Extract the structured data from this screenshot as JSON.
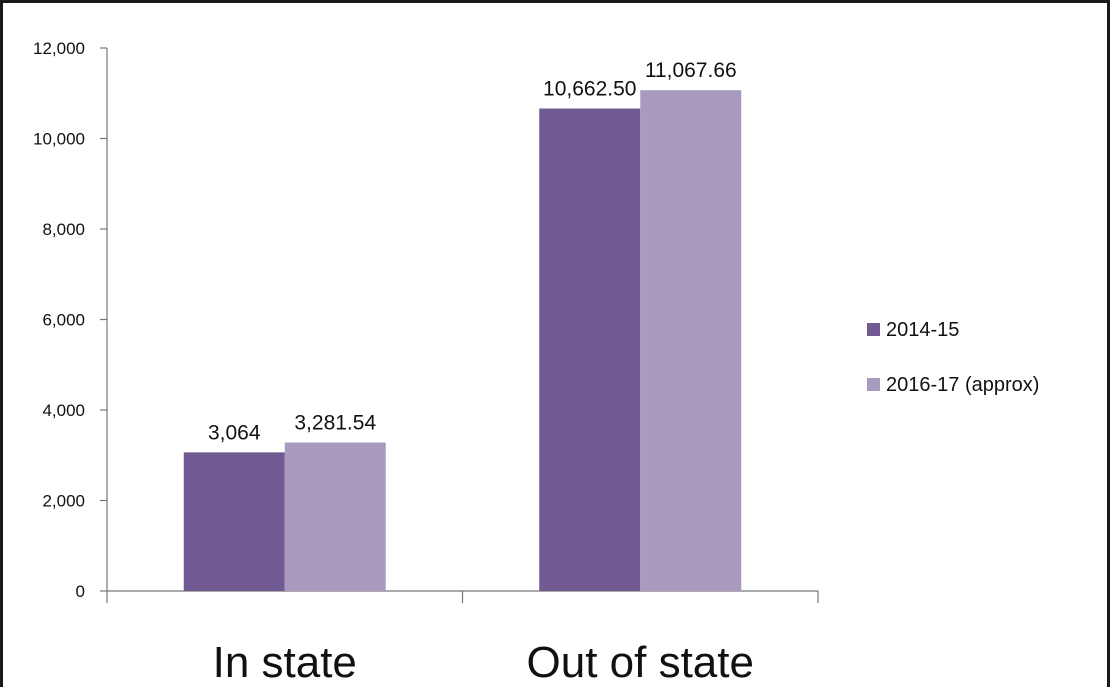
{
  "chart_data": {
    "type": "bar",
    "categories": [
      "In state",
      "Out of state"
    ],
    "series": [
      {
        "name": "2014-15",
        "values": [
          3064,
          10662.5
        ],
        "labels": [
          "3,064",
          "10,662.50"
        ],
        "color": "#715a91"
      },
      {
        "name": "2016-17 (approx)",
        "values": [
          3281.54,
          11067.66
        ],
        "labels": [
          "3,281.54",
          "11,067.66"
        ],
        "color": "#a99ac0"
      }
    ],
    "ylim": [
      0,
      12000
    ],
    "yticks": [
      0,
      2000,
      4000,
      6000,
      8000,
      10000,
      12000
    ],
    "ytick_labels": [
      "0",
      "2,000",
      "4,000",
      "6,000",
      "8,000",
      "10,000",
      "12,000"
    ],
    "grid": false,
    "legend_position": "right"
  }
}
